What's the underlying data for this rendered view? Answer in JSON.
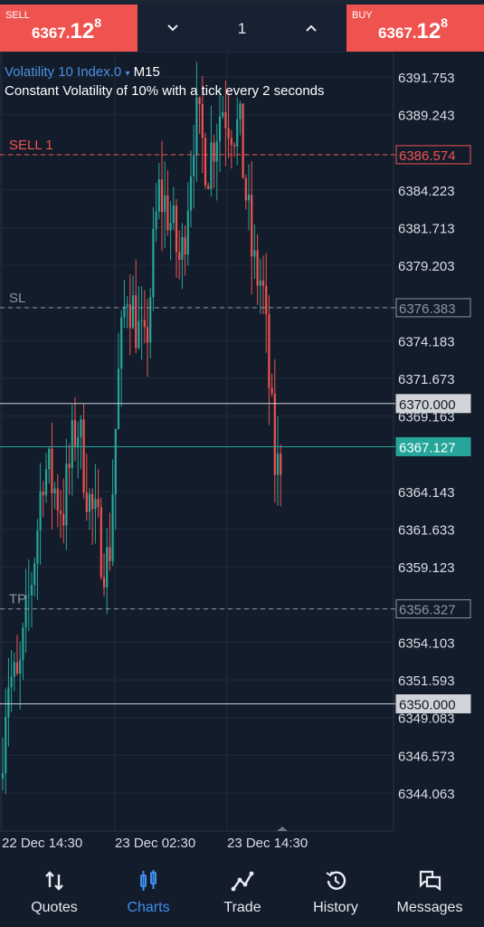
{
  "trade_bar": {
    "sell": {
      "label": "SELL",
      "price_small": "6367.",
      "price_big": "12",
      "price_sup": "8"
    },
    "buy": {
      "label": "BUY",
      "price_small": "6367.",
      "price_big": "12",
      "price_sup": "8"
    },
    "lot": "1"
  },
  "chart": {
    "symbol": "Volatility 10 Index.0",
    "timeframe": "M15",
    "description": "Constant Volatility of 10% with a tick every 2 seconds",
    "colors": {
      "bull": "#26a69a",
      "bear": "#ef5350",
      "bg": "#131c2b",
      "grid": "#1f2a3a",
      "axis": "#d9dde3"
    },
    "price_axis": [
      "6391.753",
      "6389.243",
      "6386.574",
      "6384.223",
      "6381.713",
      "6379.203",
      "6376.383",
      "6374.183",
      "6371.673",
      "6370.000",
      "6369.163",
      "6367.127",
      "6364.143",
      "6361.633",
      "6359.123",
      "6356.327",
      "6354.103",
      "6351.593",
      "6350.000",
      "6349.083",
      "6346.573",
      "6344.063"
    ],
    "levels": {
      "sell": {
        "label": "SELL 1",
        "price": "6386.574"
      },
      "sl": {
        "label": "SL",
        "price": "6376.383"
      },
      "hline1": {
        "price": "6370.000"
      },
      "current": {
        "price": "6367.127"
      },
      "tp": {
        "label": "TP",
        "price": "6356.327"
      },
      "hline2": {
        "price": "6350.000"
      }
    },
    "time_axis": [
      "22 Dec 14:30",
      "23 Dec 02:30",
      "23 Dec 14:30"
    ]
  },
  "nav": [
    {
      "label": "Quotes",
      "icon": "quotes-icon"
    },
    {
      "label": "Charts",
      "icon": "charts-icon",
      "active": true
    },
    {
      "label": "Trade",
      "icon": "trade-icon"
    },
    {
      "label": "History",
      "icon": "history-icon"
    },
    {
      "label": "Messages",
      "icon": "messages-icon"
    }
  ]
}
